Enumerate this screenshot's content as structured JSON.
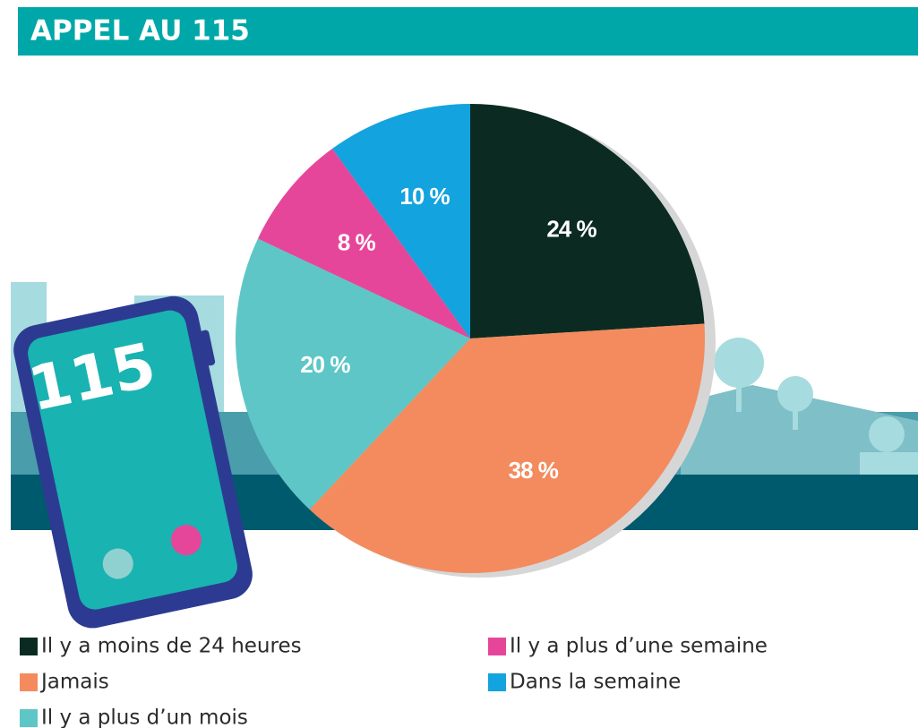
{
  "chart_data": {
    "type": "pie",
    "title": "APPEL AU 115",
    "categories": [
      "Il y a moins de 24 heures",
      "Jamais",
      "Il y a plus d’un mois",
      "Il y a plus d’une semaine",
      "Dans la semaine"
    ],
    "values": [
      24,
      38,
      20,
      8,
      10
    ],
    "value_labels": [
      "24 %",
      "38 %",
      "20 %",
      "8 %",
      "10 %"
    ],
    "colors": [
      "#0b2b22",
      "#f38b5e",
      "#5ec6c6",
      "#e6469a",
      "#13a3de"
    ]
  },
  "illustration": {
    "phone_text": "115"
  }
}
